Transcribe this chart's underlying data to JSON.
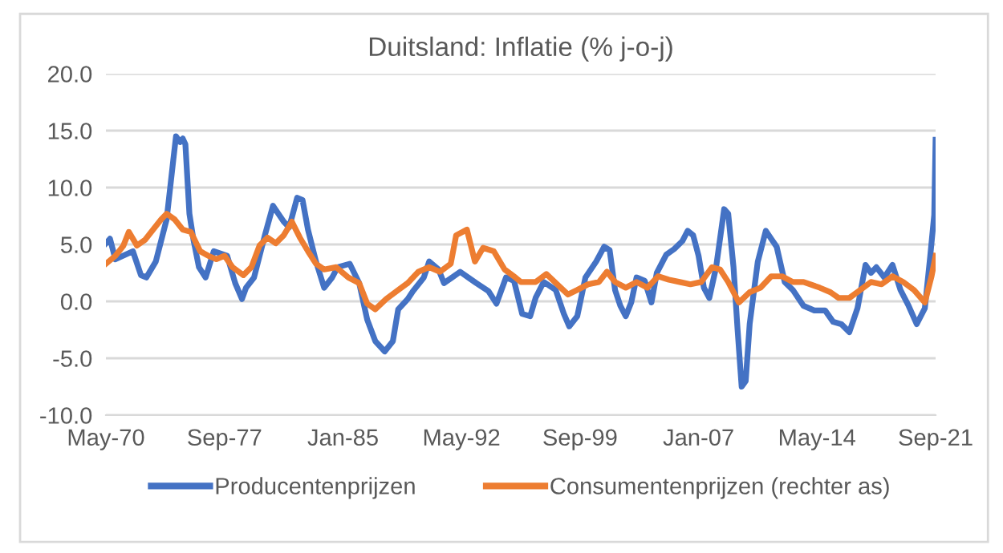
{
  "chart_data": {
    "type": "line",
    "title": "Duitsland: Inflatie (% j-o-j)",
    "xlim": [
      "1970-05",
      "2021-09"
    ],
    "xticks": [
      {
        "value": "1970-05",
        "label": "May-70"
      },
      {
        "value": "1977-09",
        "label": "Sep-77"
      },
      {
        "value": "1985-01",
        "label": "Jan-85"
      },
      {
        "value": "1992-05",
        "label": "May-92"
      },
      {
        "value": "1999-09",
        "label": "Sep-99"
      },
      {
        "value": "2007-01",
        "label": "Jan-07"
      },
      {
        "value": "2014-05",
        "label": "May-14"
      },
      {
        "value": "2021-09",
        "label": "Sep-21"
      }
    ],
    "ylim": [
      -10,
      20
    ],
    "yticks": [
      {
        "value": -10,
        "label": "-10.0"
      },
      {
        "value": -5,
        "label": "-5.0"
      },
      {
        "value": 0,
        "label": "0.0"
      },
      {
        "value": 5,
        "label": "5.0"
      },
      {
        "value": 10,
        "label": "10.0"
      },
      {
        "value": 15,
        "label": "15.0"
      },
      {
        "value": 20,
        "label": "20.0"
      }
    ],
    "grid": "y",
    "legend": "bottom",
    "marker": "none",
    "line_style": "solid",
    "series": [
      {
        "name": "Producentenprijzen",
        "color": "#4472c4",
        "x": [
          "1970-05",
          "1970-08",
          "1970-12",
          "1972-01",
          "1972-07",
          "1972-11",
          "1973-06",
          "1974-02",
          "1974-07",
          "1974-09",
          "1974-12",
          "1975-02",
          "1975-04",
          "1975-07",
          "1975-10",
          "1976-02",
          "1976-07",
          "1977-01",
          "1977-11",
          "1978-05",
          "1978-10",
          "1979-01",
          "1979-07",
          "1980-03",
          "1980-09",
          "1981-01",
          "1981-05",
          "1981-09",
          "1982-03",
          "1982-07",
          "1982-11",
          "1983-05",
          "1983-11",
          "1984-05",
          "1984-09",
          "1985-06",
          "1986-01",
          "1986-07",
          "1987-01",
          "1987-08",
          "1988-02",
          "1988-06",
          "1989-01",
          "1989-05",
          "1990-01",
          "1990-05",
          "1990-12",
          "1991-04",
          "1991-10",
          "1992-04",
          "1992-10",
          "1993-04",
          "1994-01",
          "1994-07",
          "1995-02",
          "1995-08",
          "1996-02",
          "1996-08",
          "1996-12",
          "1997-06",
          "1998-03",
          "1998-09",
          "1999-01",
          "1999-07",
          "2000-01",
          "2000-09",
          "2001-03",
          "2001-07",
          "2001-11",
          "2002-03",
          "2002-07",
          "2002-11",
          "2003-03",
          "2003-09",
          "2004-02",
          "2004-06",
          "2005-01",
          "2005-07",
          "2006-01",
          "2006-05",
          "2006-09",
          "2007-01",
          "2007-05",
          "2007-09",
          "2008-02",
          "2008-08",
          "2008-11",
          "2009-03",
          "2009-06",
          "2009-09",
          "2009-12",
          "2010-03",
          "2010-09",
          "2011-03",
          "2011-07",
          "2011-11",
          "2012-05",
          "2012-11",
          "2013-07",
          "2014-03",
          "2014-11",
          "2015-05",
          "2015-11",
          "2016-05",
          "2016-11",
          "2017-05",
          "2017-09",
          "2018-01",
          "2018-07",
          "2019-01",
          "2019-07",
          "2020-01",
          "2020-07",
          "2021-01",
          "2021-05",
          "2021-08",
          "2021-09"
        ],
        "values": [
          5.1,
          5.5,
          3.7,
          4.4,
          2.3,
          2.1,
          3.5,
          7.2,
          12.4,
          14.5,
          14.0,
          14.3,
          13.8,
          7.7,
          5.4,
          3.0,
          2.1,
          4.4,
          4.0,
          1.6,
          0.2,
          1.2,
          2.1,
          5.8,
          8.4,
          7.7,
          7.0,
          6.5,
          9.1,
          8.9,
          6.3,
          3.5,
          1.2,
          2.1,
          3.0,
          3.3,
          1.6,
          -1.6,
          -3.5,
          -4.4,
          -3.5,
          -0.7,
          0.2,
          0.9,
          2.1,
          3.5,
          2.8,
          1.6,
          2.1,
          2.6,
          2.1,
          1.6,
          0.9,
          -0.2,
          2.1,
          1.8,
          -1.1,
          -1.3,
          0.3,
          1.7,
          1.0,
          -1.1,
          -2.2,
          -1.3,
          2.1,
          3.5,
          4.8,
          4.5,
          1.0,
          -0.4,
          -1.3,
          -0.1,
          2.1,
          1.8,
          -0.1,
          2.5,
          4.1,
          4.6,
          5.3,
          6.2,
          5.8,
          4.0,
          1.2,
          0.3,
          3.0,
          8.1,
          7.7,
          3.0,
          -2.5,
          -7.5,
          -7.0,
          -2.0,
          3.5,
          6.2,
          5.5,
          4.8,
          1.7,
          1.0,
          -0.4,
          -0.8,
          -0.8,
          -1.8,
          -2.0,
          -2.7,
          -0.6,
          3.2,
          2.5,
          3.0,
          2.1,
          3.2,
          1.0,
          -0.4,
          -2.0,
          -0.6,
          3.9,
          7.6,
          14.2
        ]
      },
      {
        "name": "Consumentenprijzen (rechter as)",
        "color": "#ed7d31",
        "x": [
          "1970-05",
          "1970-12",
          "1971-06",
          "1971-10",
          "1972-04",
          "1972-10",
          "1973-04",
          "1973-10",
          "1974-02",
          "1974-08",
          "1975-02",
          "1975-08",
          "1976-03",
          "1976-09",
          "1977-03",
          "1977-09",
          "1978-03",
          "1978-11",
          "1979-05",
          "1979-11",
          "1980-05",
          "1980-11",
          "1981-05",
          "1981-11",
          "1982-05",
          "1982-11",
          "1983-05",
          "1983-11",
          "1984-08",
          "1985-05",
          "1986-01",
          "1986-07",
          "1987-01",
          "1987-09",
          "1988-05",
          "1989-01",
          "1989-09",
          "1990-05",
          "1991-01",
          "1991-09",
          "1992-01",
          "1992-09",
          "1993-03",
          "1993-09",
          "1994-05",
          "1995-01",
          "1995-09",
          "1996-01",
          "1996-12",
          "1997-08",
          "1998-04",
          "1998-12",
          "1999-07",
          "2000-03",
          "2000-11",
          "2001-05",
          "2001-11",
          "2002-07",
          "2003-03",
          "2003-11",
          "2004-07",
          "2005-03",
          "2005-11",
          "2006-07",
          "2007-03",
          "2007-11",
          "2008-05",
          "2008-11",
          "2009-07",
          "2010-03",
          "2010-11",
          "2011-07",
          "2012-03",
          "2012-11",
          "2013-07",
          "2014-07",
          "2015-03",
          "2015-09",
          "2016-05",
          "2017-01",
          "2017-09",
          "2018-05",
          "2019-01",
          "2019-09",
          "2020-05",
          "2021-01",
          "2021-06",
          "2021-09"
        ],
        "values": [
          3.3,
          4.0,
          4.9,
          6.1,
          4.9,
          5.4,
          6.3,
          7.2,
          7.7,
          7.2,
          6.3,
          6.1,
          4.4,
          4.0,
          3.7,
          4.0,
          3.0,
          2.3,
          3.0,
          4.9,
          5.6,
          5.1,
          5.8,
          7.0,
          5.6,
          4.4,
          3.3,
          2.8,
          3.0,
          2.1,
          1.6,
          -0.2,
          -0.7,
          0.2,
          0.9,
          1.6,
          2.6,
          3.0,
          2.6,
          3.3,
          5.8,
          6.3,
          3.5,
          4.7,
          4.4,
          2.8,
          2.1,
          1.7,
          1.7,
          2.4,
          1.5,
          0.6,
          1.0,
          1.5,
          1.7,
          2.6,
          1.7,
          1.2,
          1.7,
          1.2,
          2.2,
          1.9,
          1.7,
          1.5,
          1.7,
          3.0,
          2.8,
          1.7,
          -0.1,
          0.8,
          1.2,
          2.2,
          2.2,
          1.7,
          1.7,
          1.2,
          0.8,
          0.3,
          0.3,
          1.0,
          1.7,
          1.5,
          2.2,
          1.7,
          1.0,
          -0.1,
          2.2,
          4.0
        ]
      }
    ]
  }
}
